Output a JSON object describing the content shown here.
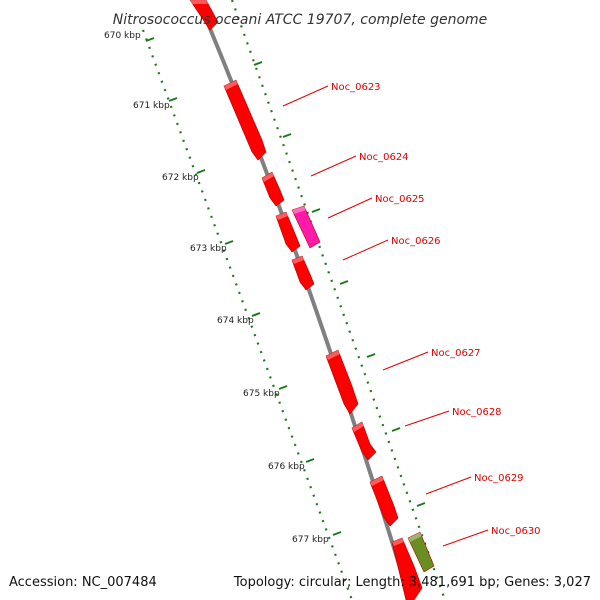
{
  "title": "Nitrosococcus oceani ATCC 19707, complete genome",
  "scale_labels": [
    "670 kbp",
    "671 kbp",
    "672 kbp",
    "673 kbp",
    "674 kbp",
    "675 kbp",
    "676 kbp",
    "677 kbp"
  ],
  "genes": [
    {
      "label": "Noc_0623",
      "color": "#ff0000"
    },
    {
      "label": "Noc_0624",
      "color": "#ff0000"
    },
    {
      "label": "Noc_0625",
      "color": "#ff1aa8"
    },
    {
      "label": "Noc_0626",
      "color": "#ff0000"
    },
    {
      "label": "Noc_0627",
      "color": "#ff0000"
    },
    {
      "label": "Noc_0628",
      "color": "#ff0000"
    },
    {
      "label": "Noc_0629",
      "color": "#ff0000"
    },
    {
      "label": "Noc_0630",
      "color": "#6b8e23"
    }
  ],
  "colors": {
    "backbone": "#808080",
    "tick": "#1a7a1a",
    "gene_label": "#e00000"
  },
  "footer": {
    "accession": "Accession: NC_007484",
    "topology": "Topology: circular; Length: 3,481,691 bp; Genes: 3,027"
  }
}
